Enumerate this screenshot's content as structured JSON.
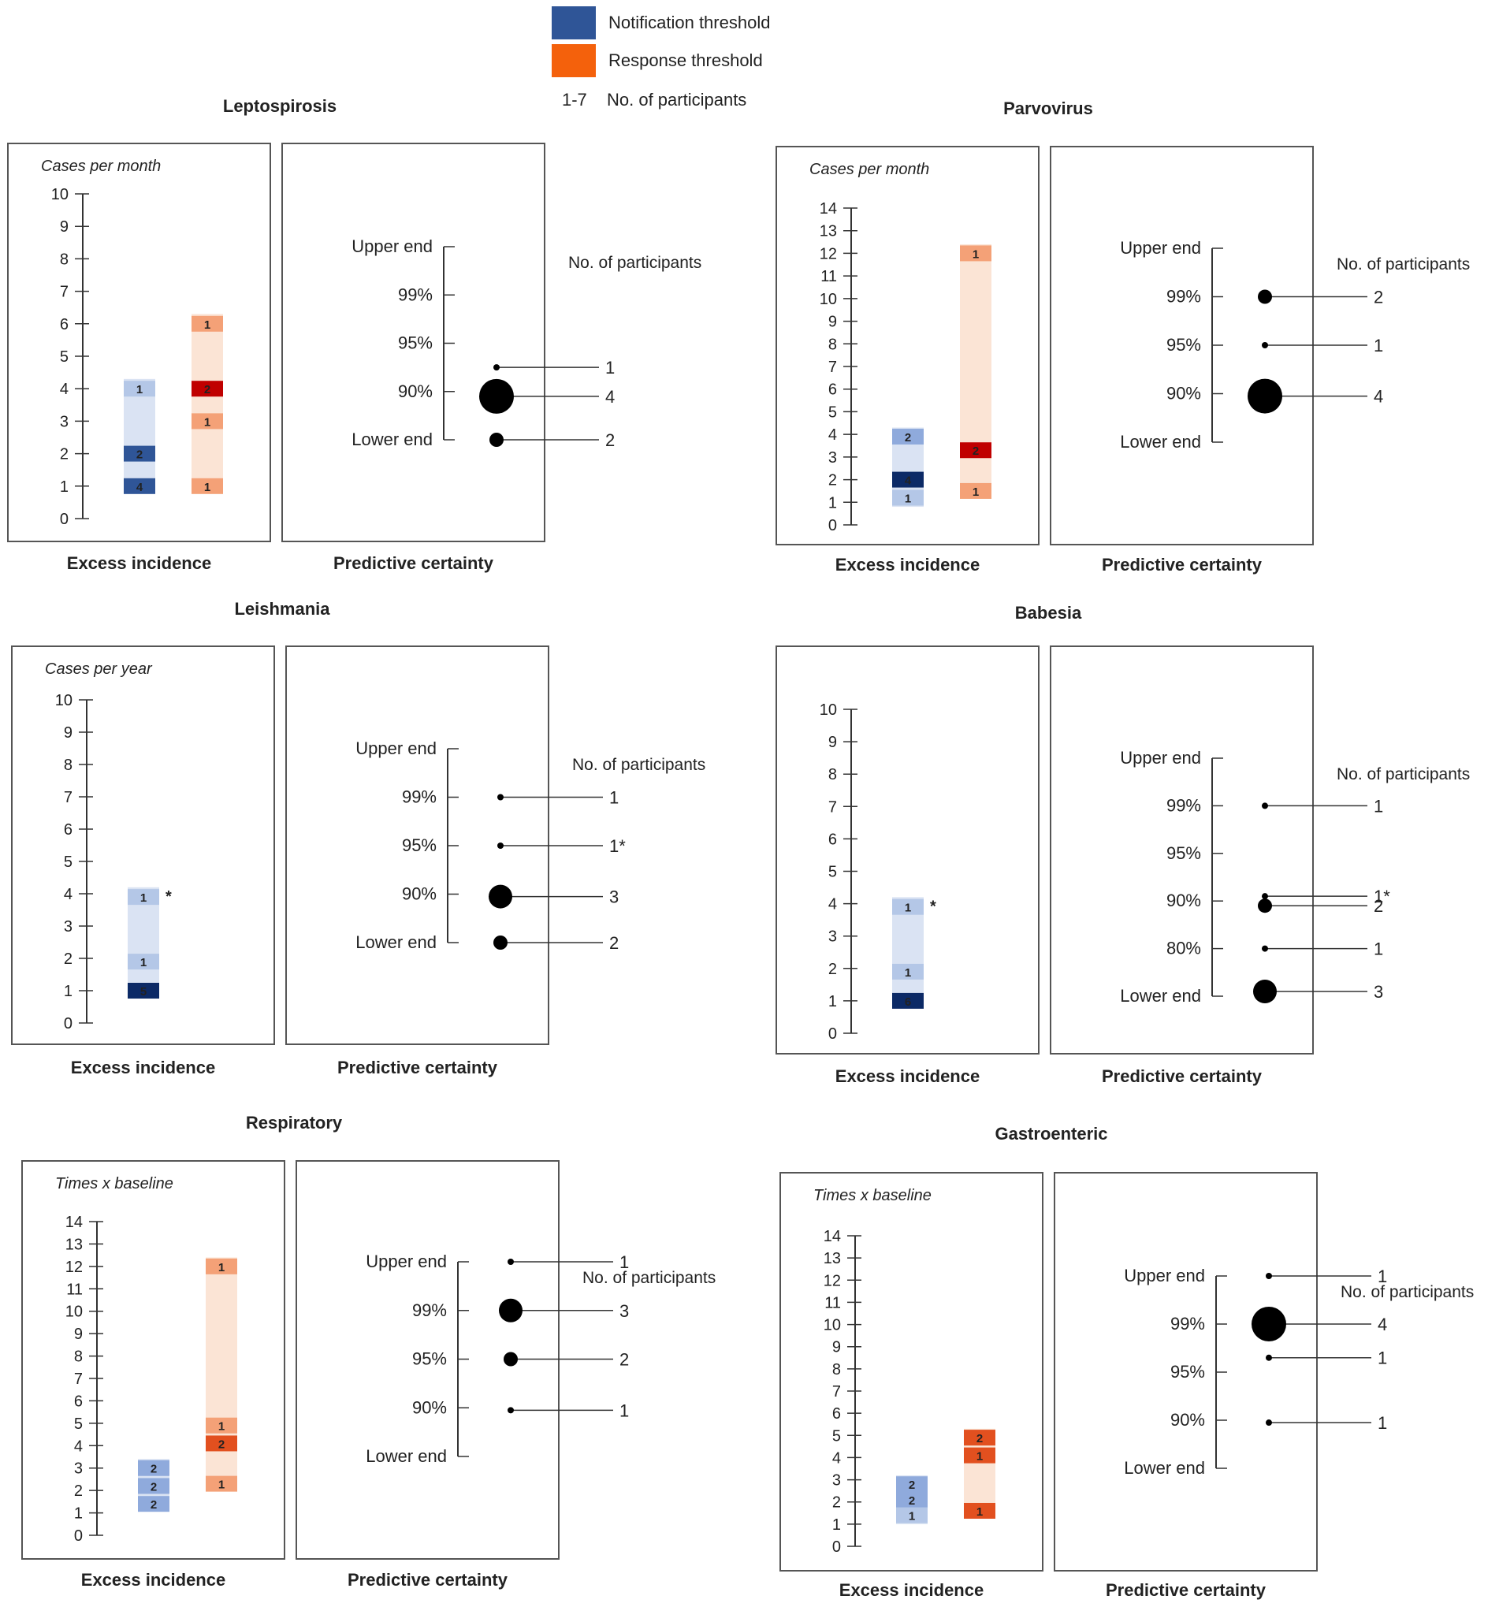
{
  "legend": {
    "notification": {
      "label": "Notification threshold",
      "color": "#2f5597"
    },
    "response": {
      "label": "Response threshold",
      "color": "#f4610c"
    },
    "count": {
      "range": "1-7",
      "label": "No. of participants"
    }
  },
  "labels": {
    "excess": "Excess incidence",
    "certainty": "Predictive certainty",
    "participants": "No. of participants"
  },
  "colors": {
    "notif_light": "#b4c7e7",
    "notif_mid": "#8faadc",
    "notif_dark": "#2f5597",
    "notif_darkest": "#0c2a66",
    "notif_range": "#dae3f3",
    "resp_light": "#f8cbad",
    "resp_mid": "#f4a177",
    "resp_dark": "#e2501f",
    "resp_red": "#c00000",
    "resp_range": "#fbe4d5",
    "axis": "#333333",
    "box": "#555555",
    "marker": "#000000"
  },
  "chart_data": [
    {
      "type": "scatter",
      "title": "Leptospirosis",
      "ylabel": "Cases per month",
      "ylim": [
        0,
        10
      ],
      "incidence": {
        "notification": {
          "range": [
            1,
            4.3
          ],
          "marks": [
            {
              "y": 4,
              "n": "1",
              "shade": "notif_light"
            },
            {
              "y": 2,
              "n": "2",
              "shade": "notif_dark"
            },
            {
              "y": 1,
              "n": "4",
              "shade": "notif_dark"
            }
          ]
        },
        "response": {
          "range": [
            1,
            6.3
          ],
          "marks": [
            {
              "y": 6,
              "n": "1",
              "shade": "resp_mid"
            },
            {
              "y": 4,
              "n": "2",
              "shade": "resp_red"
            },
            {
              "y": 3,
              "n": "1",
              "shade": "resp_mid"
            },
            {
              "y": 1,
              "n": "1",
              "shade": "resp_mid"
            }
          ]
        }
      },
      "certainty": {
        "levels": [
          "Upper end",
          "99%",
          "95%",
          "90%",
          "Lower end"
        ],
        "points": [
          {
            "level": 2.5,
            "n": "1"
          },
          {
            "level": 3.1,
            "n": "4"
          },
          {
            "level": 4,
            "n": "2"
          }
        ]
      }
    },
    {
      "type": "scatter",
      "title": "Parvovirus",
      "ylabel": "Cases per month",
      "ylim": [
        0,
        14
      ],
      "incidence": {
        "notification": {
          "range": [
            0.8,
            4.3
          ],
          "marks": [
            {
              "y": 3.9,
              "n": "2",
              "shade": "notif_mid"
            },
            {
              "y": 2,
              "n": "4",
              "shade": "notif_darkest"
            },
            {
              "y": 1.2,
              "n": "1",
              "shade": "notif_light"
            }
          ]
        },
        "response": {
          "range": [
            1.2,
            12.4
          ],
          "marks": [
            {
              "y": 12,
              "n": "1",
              "shade": "resp_mid"
            },
            {
              "y": 3.3,
              "n": "2",
              "shade": "resp_red"
            },
            {
              "y": 1.5,
              "n": "1",
              "shade": "resp_mid"
            }
          ]
        }
      },
      "certainty": {
        "levels": [
          "Upper end",
          "99%",
          "95%",
          "90%",
          "Lower end"
        ],
        "points": [
          {
            "level": 1,
            "n": "2"
          },
          {
            "level": 2,
            "n": "1"
          },
          {
            "level": 3.05,
            "n": "4"
          }
        ]
      }
    },
    {
      "type": "scatter",
      "title": "Leishmania",
      "ylabel": "Cases per year",
      "ylim": [
        0,
        10
      ],
      "incidence": {
        "notification": {
          "range": [
            1,
            4.2
          ],
          "note": "*",
          "marks": [
            {
              "y": 3.9,
              "n": "1",
              "shade": "notif_light"
            },
            {
              "y": 1.9,
              "n": "1",
              "shade": "notif_light"
            },
            {
              "y": 1,
              "n": "5",
              "shade": "notif_darkest"
            }
          ]
        },
        "response": null
      },
      "certainty": {
        "levels": [
          "Upper end",
          "99%",
          "95%",
          "90%",
          "Lower end"
        ],
        "points": [
          {
            "level": 1,
            "n": "1"
          },
          {
            "level": 2,
            "n": "1*"
          },
          {
            "level": 3.05,
            "n": "3"
          },
          {
            "level": 4,
            "n": "2"
          }
        ]
      }
    },
    {
      "type": "scatter",
      "title": "Babesia",
      "ylabel": "",
      "ylim": [
        0,
        10
      ],
      "incidence": {
        "notification": {
          "range": [
            1,
            4.2
          ],
          "note": "*",
          "marks": [
            {
              "y": 3.9,
              "n": "1",
              "shade": "notif_light"
            },
            {
              "y": 1.9,
              "n": "1",
              "shade": "notif_light"
            },
            {
              "y": 1,
              "n": "6",
              "shade": "notif_darkest"
            }
          ]
        },
        "response": null
      },
      "certainty": {
        "levels": [
          "Upper end",
          "99%",
          "95%",
          "90%",
          "80%",
          "Lower end"
        ],
        "points": [
          {
            "level": 1,
            "n": "1"
          },
          {
            "level": 2.9,
            "n": "1*"
          },
          {
            "level": 3.1,
            "n": "2"
          },
          {
            "level": 4,
            "n": "1"
          },
          {
            "level": 4.9,
            "n": "3"
          }
        ]
      }
    },
    {
      "type": "scatter",
      "title": "Respiratory",
      "ylabel": "Times x baseline",
      "ylim": [
        0,
        14
      ],
      "incidence": {
        "notification": {
          "range": [
            1.2,
            3.4
          ],
          "marks": [
            {
              "y": 3,
              "n": "2",
              "shade": "notif_mid"
            },
            {
              "y": 2.2,
              "n": "2",
              "shade": "notif_mid"
            },
            {
              "y": 1.4,
              "n": "2",
              "shade": "notif_mid"
            }
          ]
        },
        "response": {
          "range": [
            2,
            12.4
          ],
          "marks": [
            {
              "y": 12,
              "n": "1",
              "shade": "resp_mid"
            },
            {
              "y": 4.9,
              "n": "1",
              "shade": "resp_mid"
            },
            {
              "y": 4.1,
              "n": "2",
              "shade": "resp_dark"
            },
            {
              "y": 2.3,
              "n": "1",
              "shade": "resp_mid"
            }
          ]
        }
      },
      "certainty": {
        "levels": [
          "Upper end",
          "99%",
          "95%",
          "90%",
          "Lower end"
        ],
        "points": [
          {
            "level": 0,
            "n": "1"
          },
          {
            "level": 1,
            "n": "3"
          },
          {
            "level": 2,
            "n": "2"
          },
          {
            "level": 3.05,
            "n": "1"
          }
        ]
      }
    },
    {
      "type": "scatter",
      "title": "Gastroenteric",
      "ylabel": "Times x baseline",
      "ylim": [
        0,
        14
      ],
      "incidence": {
        "notification": {
          "range": [
            1,
            3.2
          ],
          "marks": [
            {
              "y": 2.8,
              "n": "2",
              "shade": "notif_mid"
            },
            {
              "y": 2.1,
              "n": "2",
              "shade": "notif_mid"
            },
            {
              "y": 1.4,
              "n": "1",
              "shade": "notif_light"
            }
          ]
        },
        "response": {
          "range": [
            1.3,
            5.3
          ],
          "marks": [
            {
              "y": 4.9,
              "n": "2",
              "shade": "resp_dark"
            },
            {
              "y": 4.1,
              "n": "1",
              "shade": "resp_dark"
            },
            {
              "y": 1.6,
              "n": "1",
              "shade": "resp_dark"
            }
          ]
        }
      },
      "certainty": {
        "levels": [
          "Upper end",
          "99%",
          "95%",
          "90%",
          "Lower end"
        ],
        "points": [
          {
            "level": 0,
            "n": "1"
          },
          {
            "level": 1,
            "n": "4"
          },
          {
            "level": 1.7,
            "n": "1"
          },
          {
            "level": 3.05,
            "n": "1"
          }
        ]
      }
    }
  ]
}
